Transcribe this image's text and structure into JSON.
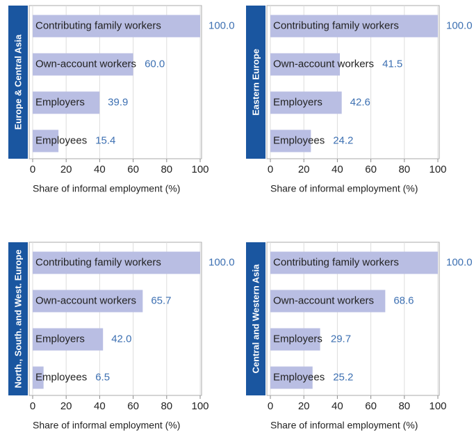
{
  "chart_data": [
    {
      "type": "bar",
      "orientation": "horizontal",
      "title": "Europe & Central Asia",
      "xlabel": "Share of informal employment (%)",
      "categories": [
        "Contributing family workers",
        "Own-account workers",
        "Employers",
        "Employees"
      ],
      "values": [
        100,
        60,
        39.9,
        15.4
      ],
      "value_labels": [
        "100.0",
        "60.0",
        "39.9",
        "15.4"
      ],
      "color": "#b9bee3",
      "xlim": [
        0,
        100
      ],
      "xticks": [
        0,
        20,
        40,
        60,
        80,
        100
      ],
      "grid": true
    },
    {
      "type": "bar",
      "orientation": "horizontal",
      "title": "Eastern Europe",
      "xlabel": "Share of informal employment (%)",
      "categories": [
        "Contributing family workers",
        "Own-account workers",
        "Employers",
        "Employees"
      ],
      "values": [
        100,
        41.5,
        42.6,
        24.2
      ],
      "value_labels": [
        "100.0",
        "41.5",
        "42.6",
        "24.2"
      ],
      "color": "#b9bee3",
      "xlim": [
        0,
        100
      ],
      "xticks": [
        0,
        20,
        40,
        60,
        80,
        100
      ],
      "grid": true
    },
    {
      "type": "bar",
      "orientation": "horizontal",
      "title": "North., South. and West. Europe",
      "xlabel": "Share of informal employment (%)",
      "categories": [
        "Contributing family workers",
        "Own-account workers",
        "Employers",
        "Employees"
      ],
      "values": [
        100,
        65.7,
        42,
        6.5
      ],
      "value_labels": [
        "100.0",
        "65.7",
        "42.0",
        "6.5"
      ],
      "color": "#b9bee3",
      "xlim": [
        0,
        100
      ],
      "xticks": [
        0,
        20,
        40,
        60,
        80,
        100
      ],
      "grid": true
    },
    {
      "type": "bar",
      "orientation": "horizontal",
      "title": "Central and Western Asia",
      "xlabel": "Share of informal employment (%)",
      "categories": [
        "Contributing family workers",
        "Own-account workers",
        "Employers",
        "Employees"
      ],
      "values": [
        100,
        68.6,
        29.7,
        25.2
      ],
      "value_labels": [
        "100.0",
        "68.6",
        "29.7",
        "25.2"
      ],
      "color": "#b9bee3",
      "xlim": [
        0,
        100
      ],
      "xticks": [
        0,
        20,
        40,
        60,
        80,
        100
      ],
      "grid": true
    }
  ]
}
